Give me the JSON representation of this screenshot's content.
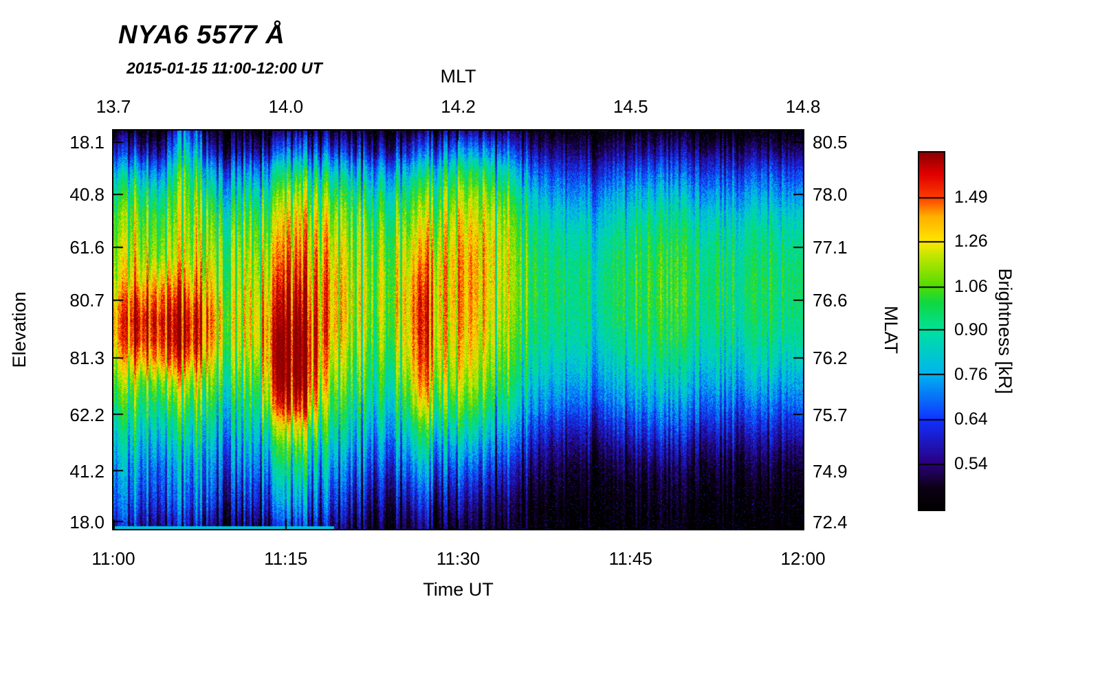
{
  "title": "NYA6 5577 Å",
  "subtitle": "2015-01-15 11:00-12:00 UT",
  "axes": {
    "top": {
      "label": "MLT",
      "ticks": [
        "13.7",
        "14.0",
        "14.2",
        "14.5",
        "14.8"
      ],
      "positions": [
        0.0,
        0.25,
        0.5,
        0.75,
        1.0
      ]
    },
    "bottom": {
      "label": "Time UT",
      "ticks": [
        "11:00",
        "11:15",
        "11:30",
        "11:45",
        "12:00"
      ],
      "positions": [
        0.0,
        0.25,
        0.5,
        0.75,
        1.0
      ]
    },
    "left": {
      "label": "Elevation",
      "ticks": [
        "18.1",
        "40.8",
        "61.6",
        "80.7",
        "81.3",
        "62.2",
        "41.2",
        "18.0"
      ],
      "positions": [
        0.029,
        0.16,
        0.293,
        0.426,
        0.571,
        0.714,
        0.855,
        0.983
      ]
    },
    "right": {
      "label": "MLAT",
      "ticks": [
        "80.5",
        "78.0",
        "77.1",
        "76.6",
        "76.2",
        "75.7",
        "74.9",
        "72.4"
      ],
      "positions": [
        0.029,
        0.16,
        0.293,
        0.426,
        0.571,
        0.714,
        0.855,
        0.983
      ]
    }
  },
  "colorbar": {
    "label": "Brightness [kR]",
    "scale": "log",
    "vmin": 0.455,
    "vmax": 1.77,
    "ticks": [
      {
        "label": "1.49",
        "value": 1.49
      },
      {
        "label": "1.26",
        "value": 1.26
      },
      {
        "label": "1.06",
        "value": 1.06
      },
      {
        "label": "0.90",
        "value": 0.9
      },
      {
        "label": "0.76",
        "value": 0.76
      },
      {
        "label": "0.64",
        "value": 0.64
      },
      {
        "label": "0.54",
        "value": 0.54
      }
    ],
    "colormap_stops": [
      [
        0.0,
        "#000000"
      ],
      [
        0.06,
        "#0d0016"
      ],
      [
        0.13,
        "#2a0080"
      ],
      [
        0.25,
        "#1030ff"
      ],
      [
        0.38,
        "#00b4f0"
      ],
      [
        0.5,
        "#00e0a0"
      ],
      [
        0.58,
        "#10d840"
      ],
      [
        0.63,
        "#58dc00"
      ],
      [
        0.7,
        "#b4e400"
      ],
      [
        0.75,
        "#ffe800"
      ],
      [
        0.82,
        "#ffb000"
      ],
      [
        0.875,
        "#ff3c00"
      ],
      [
        0.94,
        "#e00000"
      ],
      [
        1.0,
        "#8c0000"
      ]
    ]
  },
  "chart_data": {
    "type": "heatmap",
    "title": "NYA6 5577 Å auroral keogram",
    "x_axis": "Time UT from 11:00 to 12:00 (also MLT 13.7 to 14.8)",
    "y_axis": "Elevation scan 18.1 (top) through zenith to 18.0 (bottom); MLAT 80.5 to 72.4",
    "value_units": "kR",
    "n_time": 30,
    "n_elev": 20,
    "time_start": "11:00",
    "time_end": "12:00",
    "values_kR": [
      [
        0.5,
        0.62,
        0.8,
        0.95,
        1.05,
        1.1,
        1.15,
        1.2,
        1.3,
        1.38,
        1.35,
        1.2,
        1.08,
        0.98,
        0.9,
        0.82,
        0.76,
        0.72,
        0.68,
        0.6
      ],
      [
        0.48,
        0.62,
        0.82,
        1.0,
        1.12,
        1.18,
        1.25,
        1.35,
        1.55,
        1.7,
        1.65,
        1.4,
        1.15,
        1.02,
        0.92,
        0.84,
        0.77,
        0.72,
        0.66,
        0.58
      ],
      [
        0.48,
        0.6,
        0.78,
        0.95,
        1.08,
        1.15,
        1.22,
        1.4,
        1.6,
        1.75,
        1.7,
        1.5,
        1.2,
        1.05,
        0.93,
        0.84,
        0.76,
        0.71,
        0.66,
        0.58
      ],
      [
        0.7,
        0.85,
        1.0,
        1.08,
        1.12,
        1.15,
        1.2,
        1.32,
        1.5,
        1.65,
        1.68,
        1.45,
        1.18,
        1.03,
        0.92,
        0.83,
        0.75,
        0.7,
        0.65,
        0.57
      ],
      [
        0.48,
        0.6,
        0.78,
        0.92,
        1.05,
        1.12,
        1.18,
        1.25,
        1.35,
        1.45,
        1.4,
        1.25,
        1.1,
        0.98,
        0.88,
        0.8,
        0.73,
        0.68,
        0.62,
        0.54
      ],
      [
        0.46,
        0.56,
        0.72,
        0.85,
        0.96,
        1.05,
        1.1,
        1.12,
        1.15,
        1.18,
        1.15,
        1.08,
        1.0,
        0.92,
        0.84,
        0.76,
        0.7,
        0.64,
        0.58,
        0.5
      ],
      [
        0.47,
        0.58,
        0.75,
        0.9,
        1.02,
        1.1,
        1.15,
        1.2,
        1.25,
        1.28,
        1.25,
        1.15,
        1.05,
        0.96,
        0.88,
        0.8,
        0.73,
        0.66,
        0.6,
        0.52
      ],
      [
        0.5,
        0.66,
        0.88,
        1.05,
        1.18,
        1.28,
        1.38,
        1.48,
        1.58,
        1.68,
        1.76,
        1.78,
        1.72,
        1.55,
        1.2,
        1.0,
        0.88,
        0.78,
        0.7,
        0.58
      ],
      [
        0.5,
        0.66,
        0.88,
        1.05,
        1.18,
        1.28,
        1.36,
        1.45,
        1.55,
        1.65,
        1.72,
        1.75,
        1.68,
        1.5,
        1.18,
        0.98,
        0.86,
        0.76,
        0.68,
        0.56
      ],
      [
        0.48,
        0.62,
        0.82,
        0.98,
        1.1,
        1.18,
        1.25,
        1.3,
        1.32,
        1.33,
        1.3,
        1.22,
        1.12,
        1.02,
        0.92,
        0.82,
        0.74,
        0.66,
        0.6,
        0.52
      ],
      [
        0.47,
        0.6,
        0.78,
        0.92,
        1.02,
        1.08,
        1.12,
        1.15,
        1.18,
        1.16,
        1.12,
        1.06,
        1.0,
        0.92,
        0.84,
        0.76,
        0.68,
        0.62,
        0.56,
        0.5
      ],
      [
        0.46,
        0.58,
        0.75,
        0.88,
        0.98,
        1.05,
        1.08,
        1.1,
        1.1,
        1.08,
        1.05,
        1.0,
        0.95,
        0.88,
        0.8,
        0.72,
        0.65,
        0.59,
        0.53,
        0.48
      ],
      [
        0.47,
        0.6,
        0.78,
        0.92,
        1.02,
        1.1,
        1.15,
        1.18,
        1.2,
        1.18,
        1.14,
        1.08,
        1.0,
        0.92,
        0.84,
        0.75,
        0.67,
        0.6,
        0.54,
        0.49
      ],
      [
        0.5,
        0.65,
        0.85,
        1.0,
        1.12,
        1.22,
        1.32,
        1.42,
        1.5,
        1.52,
        1.5,
        1.45,
        1.35,
        1.2,
        1.0,
        0.86,
        0.75,
        0.66,
        0.58,
        0.51
      ],
      [
        0.52,
        0.7,
        0.9,
        1.05,
        1.15,
        1.22,
        1.28,
        1.3,
        1.3,
        1.28,
        1.25,
        1.2,
        1.12,
        1.02,
        0.9,
        0.78,
        0.68,
        0.6,
        0.54,
        0.48
      ],
      [
        0.52,
        0.72,
        0.93,
        1.08,
        1.18,
        1.25,
        1.3,
        1.32,
        1.32,
        1.3,
        1.26,
        1.2,
        1.12,
        1.02,
        0.88,
        0.76,
        0.66,
        0.58,
        0.52,
        0.47
      ],
      [
        0.5,
        0.68,
        0.88,
        1.02,
        1.12,
        1.18,
        1.2,
        1.2,
        1.18,
        1.16,
        1.12,
        1.06,
        1.0,
        0.9,
        0.8,
        0.7,
        0.62,
        0.55,
        0.5,
        0.46
      ],
      [
        0.48,
        0.6,
        0.74,
        0.86,
        0.95,
        1.0,
        1.03,
        1.04,
        1.04,
        1.02,
        0.98,
        0.93,
        0.87,
        0.8,
        0.71,
        0.63,
        0.56,
        0.51,
        0.47,
        0.45
      ],
      [
        0.46,
        0.55,
        0.66,
        0.76,
        0.84,
        0.9,
        0.93,
        0.95,
        0.95,
        0.93,
        0.9,
        0.85,
        0.79,
        0.72,
        0.64,
        0.57,
        0.52,
        0.48,
        0.45,
        0.44
      ],
      [
        0.45,
        0.54,
        0.63,
        0.72,
        0.8,
        0.86,
        0.9,
        0.92,
        0.92,
        0.9,
        0.87,
        0.82,
        0.76,
        0.69,
        0.61,
        0.55,
        0.5,
        0.47,
        0.44,
        0.43
      ],
      [
        0.45,
        0.53,
        0.62,
        0.71,
        0.79,
        0.85,
        0.89,
        0.91,
        0.91,
        0.89,
        0.86,
        0.81,
        0.75,
        0.68,
        0.6,
        0.54,
        0.49,
        0.46,
        0.44,
        0.43
      ],
      [
        0.45,
        0.54,
        0.64,
        0.74,
        0.82,
        0.88,
        0.92,
        0.94,
        0.94,
        0.92,
        0.88,
        0.83,
        0.77,
        0.7,
        0.62,
        0.55,
        0.5,
        0.46,
        0.44,
        0.43
      ],
      [
        0.46,
        0.55,
        0.66,
        0.77,
        0.86,
        0.92,
        0.96,
        0.98,
        0.98,
        0.96,
        0.92,
        0.87,
        0.8,
        0.72,
        0.64,
        0.57,
        0.51,
        0.47,
        0.45,
        0.44
      ],
      [
        0.46,
        0.56,
        0.68,
        0.79,
        0.88,
        0.95,
        0.99,
        1.01,
        1.01,
        0.99,
        0.95,
        0.89,
        0.82,
        0.74,
        0.66,
        0.58,
        0.52,
        0.48,
        0.45,
        0.44
      ],
      [
        0.46,
        0.56,
        0.67,
        0.78,
        0.87,
        0.94,
        0.98,
        1.0,
        1.0,
        0.98,
        0.94,
        0.88,
        0.81,
        0.73,
        0.65,
        0.58,
        0.52,
        0.48,
        0.45,
        0.44
      ],
      [
        0.45,
        0.55,
        0.65,
        0.75,
        0.84,
        0.9,
        0.94,
        0.96,
        0.96,
        0.94,
        0.9,
        0.85,
        0.78,
        0.71,
        0.63,
        0.56,
        0.51,
        0.47,
        0.44,
        0.43
      ],
      [
        0.45,
        0.54,
        0.64,
        0.74,
        0.83,
        0.89,
        0.93,
        0.95,
        0.95,
        0.93,
        0.89,
        0.84,
        0.77,
        0.7,
        0.62,
        0.56,
        0.5,
        0.47,
        0.44,
        0.43
      ],
      [
        0.45,
        0.55,
        0.66,
        0.76,
        0.85,
        0.91,
        0.95,
        0.97,
        0.97,
        0.95,
        0.91,
        0.86,
        0.79,
        0.71,
        0.63,
        0.56,
        0.51,
        0.47,
        0.45,
        0.43
      ],
      [
        0.45,
        0.54,
        0.65,
        0.75,
        0.84,
        0.9,
        0.94,
        0.96,
        0.96,
        0.94,
        0.9,
        0.85,
        0.78,
        0.7,
        0.62,
        0.56,
        0.5,
        0.47,
        0.44,
        0.43
      ],
      [
        0.45,
        0.54,
        0.64,
        0.74,
        0.83,
        0.89,
        0.93,
        0.95,
        0.95,
        0.93,
        0.89,
        0.84,
        0.77,
        0.7,
        0.62,
        0.55,
        0.5,
        0.46,
        0.44,
        0.43
      ]
    ],
    "streaks": [
      {
        "x": 0.118,
        "halfwidth": 0.004,
        "gain": 1.45
      },
      {
        "x": 0.444,
        "halfwidth": 0.005,
        "gain": 1.22
      }
    ],
    "bottom_edge_line": {
      "x_end": 0.32,
      "value_kR": 0.8
    }
  }
}
